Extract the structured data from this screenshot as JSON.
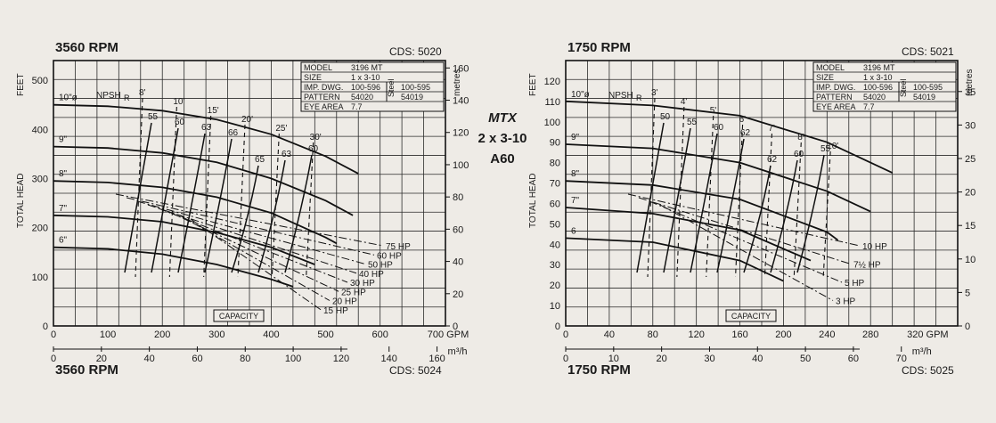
{
  "center_label": {
    "line1": "MTX",
    "line2": "2 x 3-10",
    "line3": "A60"
  },
  "chart_data": [
    {
      "type": "line",
      "title": "3560 RPM",
      "subtitle": "CDS: 5020",
      "footer_title": "3560 RPM",
      "footer_code": "CDS: 5024",
      "x_units_top": "GPM",
      "x_units_bottom": "m³/h",
      "y_label_left": "TOTAL HEAD",
      "y_units_left": "FEET",
      "y_units_right": "metres",
      "xlim_gpm": [
        0,
        720
      ],
      "ylim_ft": [
        0,
        540
      ],
      "x_ticks_gpm": [
        0,
        100,
        200,
        300,
        400,
        500,
        600,
        700
      ],
      "x_ticks_m3h": [
        0,
        20,
        40,
        60,
        80,
        100,
        120,
        140,
        160
      ],
      "y_ticks_ft": [
        0,
        100,
        200,
        300,
        400,
        500
      ],
      "y_ticks_m": [
        0,
        20,
        40,
        60,
        80,
        100,
        120,
        140,
        160
      ],
      "info_box": [
        [
          "MODEL",
          "3196 MT",
          "",
          ""
        ],
        [
          "SIZE",
          "1 x 3-10",
          "",
          ""
        ],
        [
          "IMP. DWG.",
          "100-596",
          "Steel",
          "100-595"
        ],
        [
          "PATTERN",
          "54020",
          "",
          "54019"
        ],
        [
          "EYE AREA",
          "7.7",
          "",
          ""
        ]
      ],
      "capacity_label": "CAPACITY",
      "npsh_label": "NPSH",
      "npsh_sub": "R",
      "series": [
        {
          "name": "10\"ø",
          "x": [
            0,
            100,
            200,
            300,
            400,
            500,
            560
          ],
          "y": [
            450,
            447,
            438,
            420,
            390,
            345,
            310
          ]
        },
        {
          "name": "9\"",
          "x": [
            0,
            100,
            200,
            300,
            400,
            500,
            550
          ],
          "y": [
            365,
            362,
            352,
            333,
            300,
            255,
            225
          ]
        },
        {
          "name": "8\"",
          "x": [
            0,
            100,
            200,
            300,
            400,
            500,
            520
          ],
          "y": [
            295,
            292,
            282,
            262,
            230,
            180,
            168
          ]
        },
        {
          "name": "7\"",
          "x": [
            0,
            100,
            200,
            300,
            400,
            480
          ],
          "y": [
            225,
            222,
            212,
            190,
            160,
            125
          ]
        },
        {
          "name": "6\"",
          "x": [
            0,
            100,
            200,
            300,
            400,
            440
          ],
          "y": [
            160,
            157,
            146,
            125,
            95,
            80
          ]
        }
      ],
      "efficiency_labels": [
        "55",
        "60",
        "63",
        "66",
        "65",
        "63",
        "60"
      ],
      "npsh_labels": [
        "8'",
        "10'",
        "15'",
        "20'",
        "25'",
        "30'"
      ],
      "hp_labels": [
        "75 HP",
        "60 HP",
        "50 HP",
        "40 HP",
        "30 HP",
        "25 HP",
        "20 HP",
        "15 HP"
      ]
    },
    {
      "type": "line",
      "title": "1750 RPM",
      "subtitle": "CDS: 5021",
      "footer_title": "1750 RPM",
      "footer_code": "CDS: 5025",
      "x_units_top": "GPM",
      "x_units_bottom": "m³/h",
      "y_label_left": "TOTAL HEAD",
      "y_units_left": "FEET",
      "y_units_right": "metres",
      "xlim_gpm": [
        0,
        360
      ],
      "ylim_ft": [
        0,
        130
      ],
      "x_ticks_gpm": [
        0,
        40,
        80,
        120,
        160,
        200,
        240,
        280,
        320
      ],
      "x_ticks_m3h": [
        0,
        10,
        20,
        30,
        40,
        50,
        60,
        70
      ],
      "y_ticks_ft": [
        0,
        10,
        20,
        30,
        40,
        50,
        60,
        70,
        80,
        90,
        100,
        110,
        120
      ],
      "y_ticks_m": [
        0,
        5,
        10,
        15,
        20,
        25,
        30,
        35
      ],
      "info_box": [
        [
          "MODEL",
          "3196 MT",
          "",
          ""
        ],
        [
          "SIZE",
          "1 x 3-10",
          "",
          ""
        ],
        [
          "IMP. DWG.",
          "100-596",
          "Steel",
          "100-595"
        ],
        [
          "PATTERN",
          "54020",
          "",
          "54019"
        ],
        [
          "EYE AREA",
          "7.7",
          "",
          ""
        ]
      ],
      "capacity_label": "CAPACITY",
      "npsh_label": "NPSH",
      "npsh_sub": "R",
      "series": [
        {
          "name": "10\"ø",
          "x": [
            0,
            80,
            160,
            240,
            300
          ],
          "y": [
            110,
            108,
            103,
            90,
            75
          ]
        },
        {
          "name": "9\"",
          "x": [
            0,
            80,
            160,
            240,
            280
          ],
          "y": [
            89,
            87,
            80,
            66,
            56
          ]
        },
        {
          "name": "8\"",
          "x": [
            0,
            80,
            160,
            240,
            250
          ],
          "y": [
            71,
            69,
            62,
            46,
            42
          ]
        },
        {
          "name": "7\"",
          "x": [
            0,
            80,
            160,
            225
          ],
          "y": [
            58,
            55,
            47,
            32
          ]
        },
        {
          "name": "6",
          "x": [
            0,
            80,
            160,
            200
          ],
          "y": [
            43,
            41,
            32,
            22
          ]
        }
      ],
      "efficiency_labels": [
        "50",
        "55",
        "60",
        "62",
        "62",
        "60",
        "55"
      ],
      "npsh_labels": [
        "3'",
        "4'",
        "5'",
        "6'",
        "7'",
        "8'",
        "10'"
      ],
      "hp_labels": [
        "10 HP",
        "7½ HP",
        "5 HP",
        "3 HP"
      ]
    }
  ]
}
